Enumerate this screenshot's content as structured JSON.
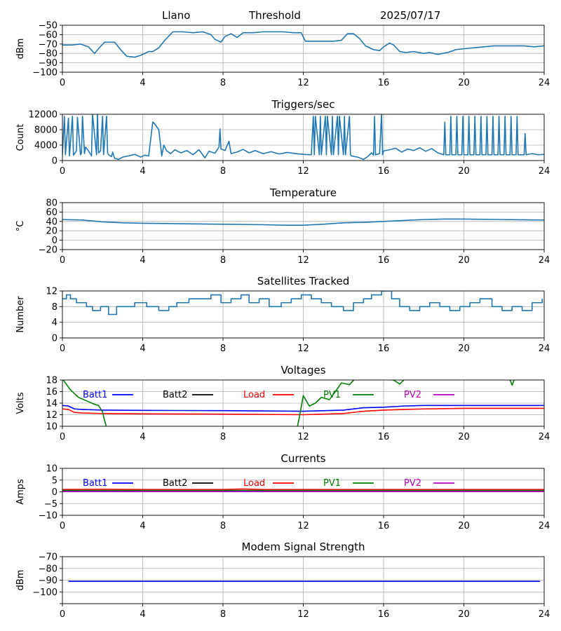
{
  "header": {
    "site": "Llano",
    "mode": "Threshold",
    "date": "2025/07/17"
  },
  "chart_data": [
    {
      "type": "line",
      "title": "",
      "ylabel": "dBm",
      "xlim": [
        0,
        24
      ],
      "ylim": [
        -100,
        -50
      ],
      "xticks": [
        "0",
        "4",
        "8",
        "12",
        "16",
        "20",
        "24"
      ],
      "yticks": [
        -50,
        -60,
        -70,
        -80,
        -90,
        -100
      ],
      "ytick_labels": [
        "−50",
        "−60",
        "−70",
        "−80",
        "−90",
        "−100"
      ],
      "grid": true,
      "series": [
        {
          "color": "#1f77b4",
          "x": [
            0,
            0.5,
            0.9,
            1.3,
            1.6,
            1.8,
            2.1,
            2.6,
            2.9,
            3.2,
            3.6,
            3.9,
            4.3,
            4.5,
            4.8,
            5.1,
            5.5,
            6.0,
            6.5,
            7.0,
            7.4,
            7.6,
            7.9,
            8.1,
            8.4,
            8.7,
            9.0,
            9.5,
            10.0,
            10.5,
            11.0,
            11.5,
            11.9,
            12.1,
            12.5,
            13.0,
            13.5,
            13.9,
            14.2,
            14.5,
            14.8,
            15.1,
            15.5,
            15.8,
            16.0,
            16.3,
            16.5,
            16.8,
            17.1,
            17.5,
            18.0,
            18.3,
            18.7,
            19.2,
            19.6,
            20.0,
            20.5,
            21.0,
            21.5,
            22.0,
            22.5,
            23.0,
            23.5,
            24.0
          ],
          "y": [
            -71,
            -71,
            -70,
            -73,
            -80,
            -75,
            -68,
            -68,
            -76,
            -83,
            -84,
            -82,
            -78,
            -78,
            -74,
            -66,
            -57,
            -57,
            -58,
            -57,
            -60,
            -65,
            -68,
            -62,
            -59,
            -63,
            -58,
            -58,
            -57,
            -57,
            -57,
            -58,
            -58,
            -67,
            -67,
            -67,
            -67,
            -66,
            -59,
            -59,
            -64,
            -72,
            -76,
            -77,
            -73,
            -69,
            -71,
            -78,
            -79,
            -78,
            -80,
            -79,
            -81,
            -79,
            -76,
            -75,
            -74,
            -73,
            -72,
            -72,
            -72,
            -72,
            -73,
            -72
          ]
        }
      ]
    },
    {
      "type": "line",
      "title": "Triggers/sec",
      "ylabel": "Count",
      "xlim": [
        0,
        24
      ],
      "ylim": [
        0,
        12000
      ],
      "xticks": [
        "0",
        "4",
        "8",
        "12",
        "16",
        "20",
        "24"
      ],
      "yticks": [
        0,
        4000,
        8000,
        12000
      ],
      "ytick_labels": [
        "0",
        "4000",
        "8000",
        "12000"
      ],
      "grid": true,
      "series": [
        {
          "color": "#1f77b4",
          "x": [
            0,
            0.1,
            0.15,
            0.3,
            0.35,
            0.5,
            0.55,
            0.7,
            0.75,
            0.9,
            0.95,
            1.0,
            1.1,
            1.15,
            1.3,
            1.45,
            1.5,
            1.7,
            1.75,
            1.8,
            1.9,
            2.0,
            2.05,
            2.2,
            2.25,
            2.3,
            2.45,
            2.5,
            2.6,
            2.8,
            3.0,
            3.3,
            3.6,
            3.9,
            4.1,
            4.3,
            4.5,
            4.6,
            4.8,
            4.95,
            5.05,
            5.2,
            5.4,
            5.6,
            5.9,
            6.2,
            6.5,
            6.8,
            7.1,
            7.3,
            7.6,
            7.8,
            7.85,
            7.9,
            8.1,
            8.3,
            8.4,
            8.7,
            9.0,
            9.3,
            9.6,
            10.0,
            10.4,
            10.8,
            11.2,
            11.6,
            12.0,
            12.4,
            12.5,
            12.55,
            12.6,
            12.8,
            12.85,
            12.9,
            13.1,
            13.15,
            13.2,
            13.4,
            13.45,
            13.5,
            13.7,
            13.75,
            13.8,
            14.0,
            14.05,
            14.1,
            14.3,
            14.35,
            14.4,
            14.7,
            15.0,
            15.2,
            15.4,
            15.5,
            15.55,
            15.6,
            15.8,
            15.9,
            15.95,
            16.0,
            16.3,
            16.6,
            16.9,
            17.2,
            17.5,
            17.8,
            18.1,
            18.4,
            18.7,
            19.0,
            19.05,
            19.1,
            19.3,
            19.35,
            19.4,
            19.6,
            19.65,
            19.7,
            19.9,
            19.95,
            20.0,
            20.2,
            20.25,
            20.3,
            20.5,
            20.55,
            20.6,
            20.8,
            20.85,
            20.9,
            21.1,
            21.15,
            21.2,
            21.4,
            21.45,
            21.5,
            21.7,
            21.75,
            21.8,
            22.0,
            22.05,
            22.1,
            22.3,
            22.35,
            22.4,
            22.6,
            22.65,
            22.7,
            23.0,
            23.05,
            23.1,
            23.4,
            23.7,
            24.0
          ],
          "y": [
            1500,
            11500,
            1500,
            11000,
            1200,
            11500,
            1400,
            2500,
            11200,
            1500,
            2000,
            11500,
            1800,
            3500,
            2500,
            1200,
            12000,
            1500,
            12200,
            2000,
            2500,
            11500,
            1500,
            11500,
            2000,
            1500,
            1000,
            2200,
            600,
            300,
            900,
            1200,
            1600,
            900,
            1400,
            1200,
            10000,
            9500,
            8000,
            1200,
            4000,
            2500,
            1800,
            2800,
            2000,
            2600,
            1500,
            2800,
            700,
            2400,
            1900,
            3500,
            8200,
            3000,
            2600,
            5000,
            1800,
            2200,
            2900,
            2000,
            2600,
            1800,
            2300,
            1700,
            2100,
            1800,
            1600,
            1500,
            11500,
            1500,
            11500,
            1500,
            11500,
            1500,
            11500,
            1500,
            11500,
            1500,
            11500,
            1500,
            11500,
            1500,
            11500,
            1500,
            11500,
            1500,
            11500,
            1500,
            1200,
            900,
            300,
            1000,
            2000,
            1400,
            11500,
            1500,
            1800,
            12200,
            1500,
            2500,
            2800,
            3200,
            2200,
            3000,
            2600,
            3300,
            2400,
            3100,
            2000,
            1500,
            10000,
            1500,
            1500,
            11500,
            1500,
            1500,
            11500,
            1500,
            1500,
            11500,
            1500,
            1500,
            11500,
            1500,
            1500,
            11500,
            1500,
            1500,
            11500,
            1500,
            1500,
            11500,
            1500,
            1500,
            11500,
            1500,
            1500,
            11500,
            1500,
            1500,
            11500,
            1500,
            1500,
            11500,
            1500,
            1500,
            11500,
            1500,
            1500,
            7000,
            1500,
            1800,
            1500,
            1600
          ]
        }
      ]
    },
    {
      "type": "line",
      "title": "Temperature",
      "ylabel": "°C",
      "xlim": [
        0,
        24
      ],
      "ylim": [
        -20,
        80
      ],
      "xticks": [
        "0",
        "4",
        "8",
        "12",
        "16",
        "20",
        "24"
      ],
      "yticks": [
        80,
        60,
        40,
        20,
        0,
        -20
      ],
      "ytick_labels": [
        "80",
        "60",
        "40",
        "20",
        "0",
        "−20"
      ],
      "grid": true,
      "series": [
        {
          "color": "#1f77b4",
          "x": [
            0,
            1,
            2,
            3,
            4,
            6,
            8,
            10,
            11,
            12,
            13,
            14,
            15,
            16,
            17,
            18,
            19,
            20,
            22,
            24
          ],
          "y": [
            44,
            43,
            39,
            37,
            36,
            35,
            34,
            33,
            32,
            32,
            34,
            37,
            38,
            40,
            42,
            44,
            45,
            45,
            44,
            43
          ]
        }
      ]
    },
    {
      "type": "line",
      "step": true,
      "title": "Satellites Tracked",
      "ylabel": "Number",
      "xlim": [
        0,
        24
      ],
      "ylim": [
        0,
        12
      ],
      "xticks": [
        "0",
        "4",
        "8",
        "12",
        "16",
        "20",
        "24"
      ],
      "yticks": [
        0,
        4,
        8,
        12
      ],
      "ytick_labels": [
        "0",
        "4",
        "8",
        "12"
      ],
      "grid": true,
      "series": [
        {
          "color": "#1f77b4",
          "x": [
            0,
            0.2,
            0.4,
            0.7,
            1.2,
            1.5,
            1.9,
            2.3,
            2.7,
            3.1,
            3.6,
            4.2,
            4.8,
            5.3,
            5.7,
            6.3,
            6.9,
            7.4,
            7.9,
            8.4,
            8.9,
            9.3,
            9.8,
            10.3,
            10.9,
            11.4,
            11.9,
            12.4,
            12.9,
            13.4,
            14.0,
            14.5,
            15.0,
            15.4,
            15.9,
            16.4,
            16.8,
            17.3,
            17.8,
            18.3,
            18.8,
            19.3,
            19.8,
            20.3,
            20.8,
            21.4,
            21.9,
            22.4,
            22.9,
            23.4,
            23.9
          ],
          "y": [
            10,
            11,
            10,
            9,
            8,
            7,
            8,
            6,
            8,
            8,
            9,
            8,
            7,
            8,
            9,
            10,
            10,
            11,
            9,
            10,
            11,
            9,
            10,
            8,
            9,
            10,
            11,
            10,
            9,
            8,
            7,
            9,
            10,
            11,
            12,
            10,
            8,
            7,
            8,
            9,
            8,
            7,
            8,
            9,
            10,
            8,
            7,
            8,
            7,
            9,
            10
          ]
        }
      ]
    },
    {
      "type": "line",
      "title": "Voltages",
      "ylabel": "Volts",
      "xlim": [
        0,
        24
      ],
      "ylim": [
        10,
        18
      ],
      "xticks": [
        "0",
        "4",
        "8",
        "12",
        "16",
        "20",
        "24"
      ],
      "yticks": [
        10,
        12,
        14,
        16,
        18
      ],
      "ytick_labels": [
        "10",
        "12",
        "14",
        "16",
        "18"
      ],
      "grid": true,
      "series": [
        {
          "name": "Batt1",
          "color": "#0000ff",
          "x": [
            0,
            0.3,
            0.6,
            1,
            2,
            4,
            8,
            12,
            14,
            15,
            16,
            17,
            18,
            20,
            24
          ],
          "y": [
            13.6,
            13.5,
            13.0,
            12.9,
            12.8,
            12.75,
            12.7,
            12.6,
            12.8,
            13.2,
            13.3,
            13.5,
            13.6,
            13.6,
            13.6
          ]
        },
        {
          "name": "Batt2",
          "color": "#000000",
          "x": [],
          "y": []
        },
        {
          "name": "Load",
          "color": "#ff0000",
          "x": [
            0,
            0.3,
            0.6,
            1,
            2,
            4,
            8,
            12,
            14,
            15,
            16,
            17,
            18,
            20,
            24
          ],
          "y": [
            13.0,
            12.9,
            12.4,
            12.3,
            12.2,
            12.15,
            12.1,
            12.0,
            12.2,
            12.6,
            12.8,
            12.9,
            13.0,
            13.1,
            13.1
          ]
        },
        {
          "name": "PV1",
          "color": "#008000",
          "x": [
            0,
            0.4,
            0.8,
            1.2,
            1.6,
            1.8,
            2.0,
            2.1,
            2.2,
            11.7,
            11.8,
            12.0,
            12.3,
            12.6,
            12.9,
            13.3,
            13.6,
            13.9,
            14.3,
            14.6,
            14.9,
            15.2,
            15.5,
            15.8,
            16.1,
            16.5,
            16.8,
            17.1,
            17.4,
            22.2,
            22.4,
            22.6
          ],
          "y": [
            18.2,
            16.3,
            15.0,
            14.4,
            13.8,
            13.6,
            12.5,
            11.0,
            9.8,
            9.8,
            11.5,
            15.3,
            13.5,
            14.0,
            15.0,
            14.6,
            16.0,
            17.5,
            17.2,
            18.3,
            18.8,
            19.5,
            19.0,
            18.5,
            18.1,
            18.0,
            17.3,
            18.3,
            19.0,
            19.0,
            17.1,
            18.8
          ]
        },
        {
          "name": "PV2",
          "color": "#bf00bf",
          "x": [],
          "y": []
        }
      ]
    },
    {
      "type": "line",
      "title": "Currents",
      "ylabel": "Amps",
      "xlim": [
        0,
        24
      ],
      "ylim": [
        -10,
        10
      ],
      "xticks": [
        "0",
        "4",
        "8",
        "12",
        "16",
        "20",
        "24"
      ],
      "yticks": [
        10,
        5,
        0,
        -5,
        -10
      ],
      "ytick_labels": [
        "10",
        "5",
        "0",
        "−5",
        "−10"
      ],
      "grid": true,
      "series": [
        {
          "name": "Batt1",
          "color": "#0000ff",
          "x": [
            0,
            24
          ],
          "y": [
            0.3,
            0.3
          ]
        },
        {
          "name": "Batt2",
          "color": "#000000",
          "x": [],
          "y": []
        },
        {
          "name": "Load",
          "color": "#ff0000",
          "x": [
            0,
            2,
            4,
            6,
            8,
            9,
            10,
            12,
            14,
            16,
            18,
            20,
            22,
            24
          ],
          "y": [
            1.0,
            1.1,
            1.0,
            1.0,
            1.0,
            1.2,
            1.0,
            1.0,
            1.0,
            1.0,
            1.0,
            1.0,
            1.0,
            1.0
          ]
        },
        {
          "name": "PV1",
          "color": "#008000",
          "x": [
            0,
            24
          ],
          "y": [
            0.6,
            0.6
          ]
        },
        {
          "name": "PV2",
          "color": "#bf00bf",
          "x": [
            0,
            24
          ],
          "y": [
            0.1,
            0.1
          ]
        }
      ]
    },
    {
      "type": "line",
      "title": "Modem Signal Strength",
      "ylabel": "dBm",
      "xlim": [
        0,
        24
      ],
      "ylim": [
        -110,
        -70
      ],
      "xticks": [
        "0",
        "4",
        "8",
        "12",
        "16",
        "20",
        "24"
      ],
      "yticks": [
        -70,
        -80,
        -90,
        -100,
        -110
      ],
      "ytick_labels": [
        "−70",
        "−80",
        "−90",
        "−100",
        ""
      ],
      "grid": true,
      "series": [
        {
          "color": "#0000ff",
          "x": [
            0.3,
            23.8
          ],
          "y": [
            -91,
            -91
          ]
        }
      ]
    }
  ]
}
